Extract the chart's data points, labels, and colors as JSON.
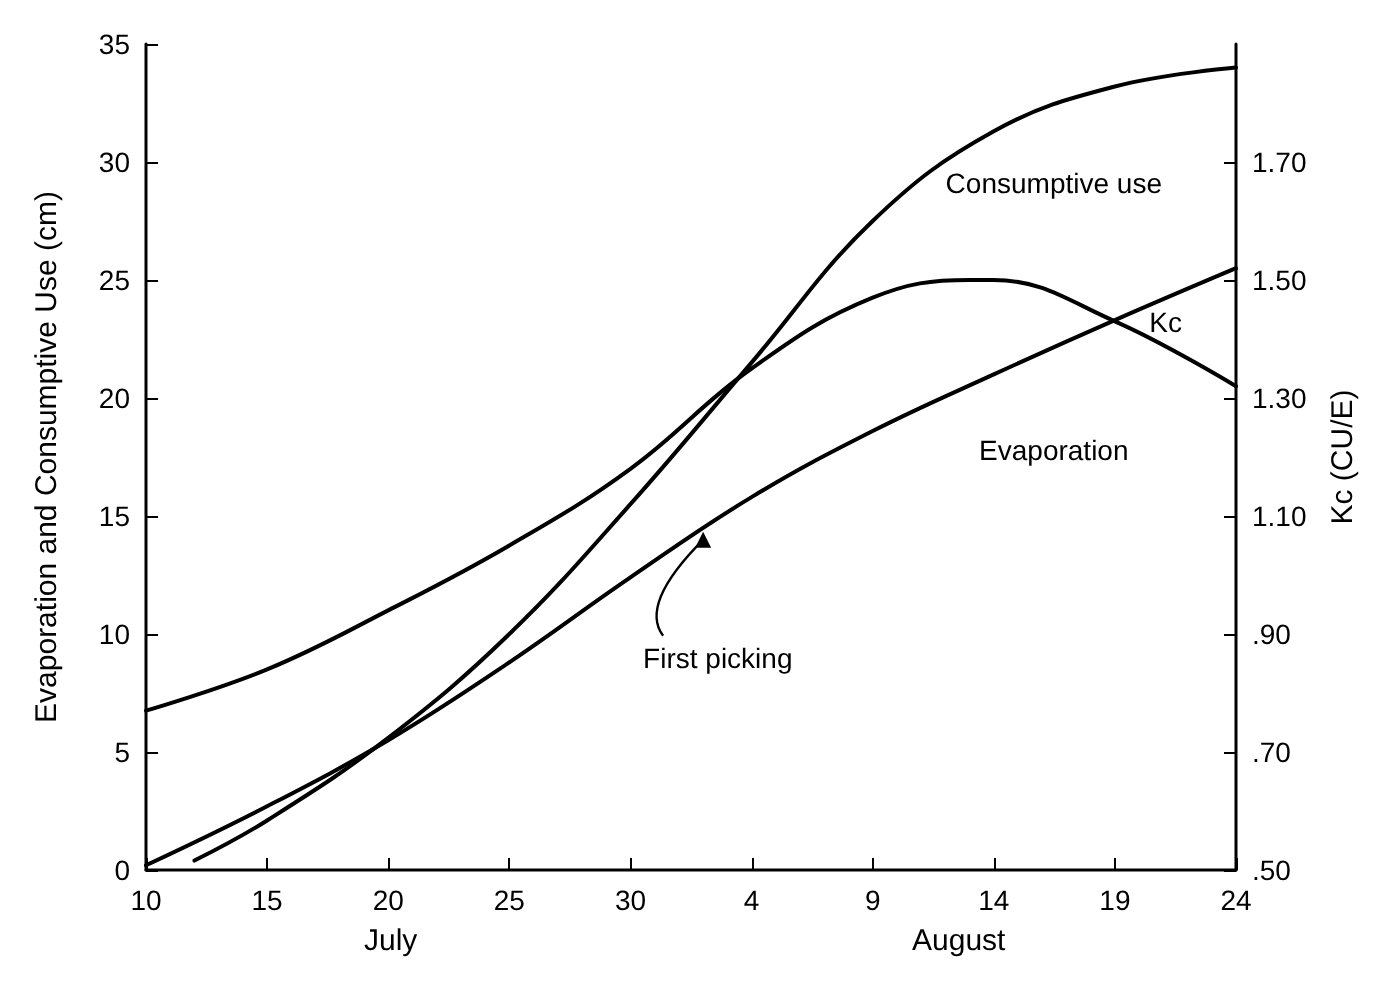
{
  "chart_data": {
    "type": "line",
    "ylabel": "Evaporation and Consumptive Use (cm)",
    "y2label": "Kc (CU/E)",
    "xlim": [
      "--07-10",
      "--08-24"
    ],
    "xticks": [
      {
        "value": "--07-10",
        "label": "10"
      },
      {
        "value": "--07-15",
        "label": "15"
      },
      {
        "value": "--07-20",
        "label": "20"
      },
      {
        "value": "--07-25",
        "label": "25"
      },
      {
        "value": "--07-30",
        "label": "30"
      },
      {
        "value": "--08-04",
        "label": "4"
      },
      {
        "value": "--08-09",
        "label": "9"
      },
      {
        "value": "--08-14",
        "label": "14"
      },
      {
        "value": "--08-19",
        "label": "19"
      },
      {
        "value": "--08-24",
        "label": "24"
      }
    ],
    "ylim": [
      0,
      35
    ],
    "yticks": [
      0,
      5,
      10,
      15,
      20,
      25,
      30,
      35
    ],
    "y2lim": [
      0.5,
      1.9
    ],
    "y2ticks": [
      {
        "value": 0.5,
        "label": ".50"
      },
      {
        "value": 0.7,
        "label": ".70"
      },
      {
        "value": 0.9,
        "label": ".90"
      },
      {
        "value": 1.1,
        "label": "1.10"
      },
      {
        "value": 1.3,
        "label": "1.30"
      },
      {
        "value": 1.5,
        "label": "1.50"
      },
      {
        "value": 1.7,
        "label": "1.70"
      }
    ],
    "marker": "none",
    "line_style": "solid",
    "series": [
      {
        "name": "Consumptive use",
        "color": "#000000",
        "x": [
          "--07-12",
          "--07-15",
          "--07-20",
          "--07-25",
          "--07-30",
          "--08-04",
          "--08-09",
          "--08-14",
          "--08-19",
          "--08-24"
        ],
        "values": [
          0.4,
          2.1,
          5.6,
          10,
          15.5,
          21.5,
          27.5,
          31.3,
          33.2,
          34.0
        ]
      },
      {
        "name": "Kc",
        "color": "#000000",
        "axis": "y2",
        "x": [
          "--07-10",
          "--07-15",
          "--07-20",
          "--07-25",
          "--07-30",
          "--08-04",
          "--08-09",
          "--08-13",
          "--08-14",
          "--08-19",
          "--08-24"
        ],
        "values": [
          0.77,
          0.84,
          0.94,
          1.05,
          1.18,
          1.35,
          1.47,
          1.5,
          1.5,
          1.43,
          1.32
        ]
      },
      {
        "name": "Evaporation",
        "color": "#000000",
        "x": [
          "--07-10",
          "--07-15",
          "--07-20",
          "--07-25",
          "--07-30",
          "--08-04",
          "--08-09",
          "--08-14",
          "--08-19",
          "--08-24"
        ],
        "values": [
          0.2,
          2.7,
          5.5,
          8.8,
          12.4,
          15.8,
          18.6,
          21.0,
          23.3,
          25.5
        ]
      }
    ],
    "annotations": [
      "July",
      "August",
      {
        "text": "First picking",
        "x": "--08-02",
        "y": 14.5
      }
    ]
  }
}
